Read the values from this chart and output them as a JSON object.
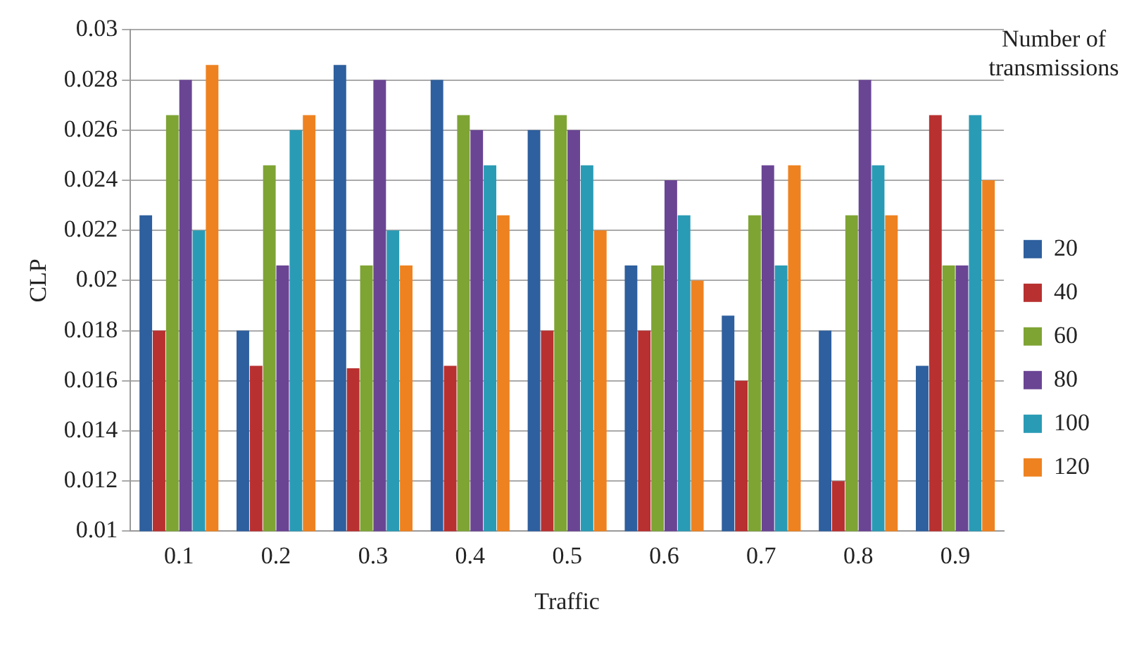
{
  "chart_data": {
    "type": "bar",
    "xlabel": "Traffic",
    "ylabel": "CLP",
    "legend_title": "Number of transmissions",
    "categories": [
      "0.1",
      "0.2",
      "0.3",
      "0.4",
      "0.5",
      "0.6",
      "0.7",
      "0.8",
      "0.9"
    ],
    "series": [
      {
        "name": "20",
        "color": "#2e5f9e",
        "values": [
          0.0226,
          0.018,
          0.0286,
          0.028,
          0.026,
          0.0206,
          0.0186,
          0.018,
          0.0166
        ]
      },
      {
        "name": "40",
        "color": "#b83030",
        "values": [
          0.018,
          0.0166,
          0.0165,
          0.0166,
          0.018,
          0.018,
          0.016,
          0.012,
          0.0266
        ]
      },
      {
        "name": "60",
        "color": "#7ea434",
        "values": [
          0.0266,
          0.0246,
          0.0206,
          0.0266,
          0.0266,
          0.0206,
          0.0226,
          0.0226,
          0.0206
        ]
      },
      {
        "name": "80",
        "color": "#6a4594",
        "values": [
          0.028,
          0.0206,
          0.028,
          0.026,
          0.026,
          0.024,
          0.0246,
          0.028,
          0.0206
        ]
      },
      {
        "name": "100",
        "color": "#2a9bb5",
        "values": [
          0.022,
          0.026,
          0.022,
          0.0246,
          0.0246,
          0.0226,
          0.0206,
          0.0246,
          0.0266
        ]
      },
      {
        "name": "120",
        "color": "#ee8220",
        "values": [
          0.0286,
          0.0266,
          0.0206,
          0.0226,
          0.022,
          0.02,
          0.0246,
          0.0226,
          0.024
        ]
      }
    ],
    "ylim": [
      0.01,
      0.03
    ],
    "yticks": [
      0.01,
      0.012,
      0.014,
      0.016,
      0.018,
      0.02,
      0.022,
      0.024,
      0.026,
      0.028,
      0.03
    ],
    "grid": "y",
    "legend": "right"
  }
}
